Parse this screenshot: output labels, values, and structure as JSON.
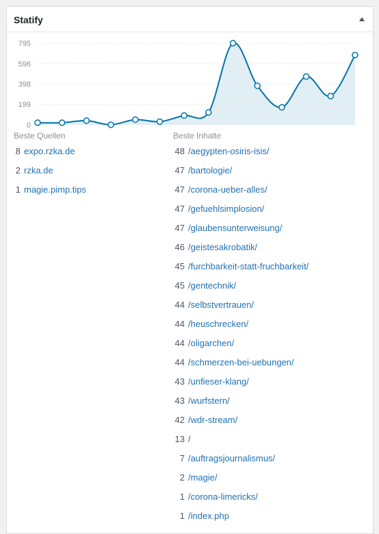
{
  "widget": {
    "title": "Statify",
    "toggle_icon": "triangle-up-icon"
  },
  "chart_data": {
    "type": "area",
    "title": "",
    "xlabel": "",
    "ylabel": "",
    "yticks": [
      0,
      199,
      398,
      596,
      795
    ],
    "ylim": [
      0,
      795
    ],
    "values": [
      20,
      20,
      40,
      0,
      50,
      30,
      90,
      120,
      795,
      380,
      170,
      470,
      280,
      680
    ],
    "line_color": "#0073aa",
    "fill_color": "#e1eef4",
    "grid": true,
    "grid_style": "dotted"
  },
  "sources": {
    "label": "Beste Quellen",
    "items": [
      {
        "count": "8",
        "name": "expo.rzka.de"
      },
      {
        "count": "2",
        "name": "rzka.de"
      },
      {
        "count": "1",
        "name": "magie.pimp.tips"
      }
    ]
  },
  "content": {
    "label": "Beste Inhalte",
    "items": [
      {
        "count": "48",
        "path": "/aegypten-osiris-isis/"
      },
      {
        "count": "47",
        "path": "/bartologie/"
      },
      {
        "count": "47",
        "path": "/corona-ueber-alles/"
      },
      {
        "count": "47",
        "path": "/gefuehlsimplosion/"
      },
      {
        "count": "47",
        "path": "/glaubensunterweisung/"
      },
      {
        "count": "46",
        "path": "/geistesakrobatik/"
      },
      {
        "count": "45",
        "path": "/furchbarkeit-statt-fruchbarkeit/"
      },
      {
        "count": "45",
        "path": "/gentechnik/"
      },
      {
        "count": "44",
        "path": "/selbstvertrauen/"
      },
      {
        "count": "44",
        "path": "/heuschrecken/"
      },
      {
        "count": "44",
        "path": "/oligarchen/"
      },
      {
        "count": "44",
        "path": "/schmerzen-bei-uebungen/"
      },
      {
        "count": "43",
        "path": "/unfieser-klang/"
      },
      {
        "count": "43",
        "path": "/wurfstern/"
      },
      {
        "count": "42",
        "path": "/wdr-stream/"
      },
      {
        "count": "13",
        "path": "/"
      },
      {
        "count": "7",
        "path": "/auftragsjournalismus/"
      },
      {
        "count": "2",
        "path": "/magie/"
      },
      {
        "count": "1",
        "path": "/corona-limericks/"
      },
      {
        "count": "1",
        "path": "/index.php"
      }
    ]
  }
}
